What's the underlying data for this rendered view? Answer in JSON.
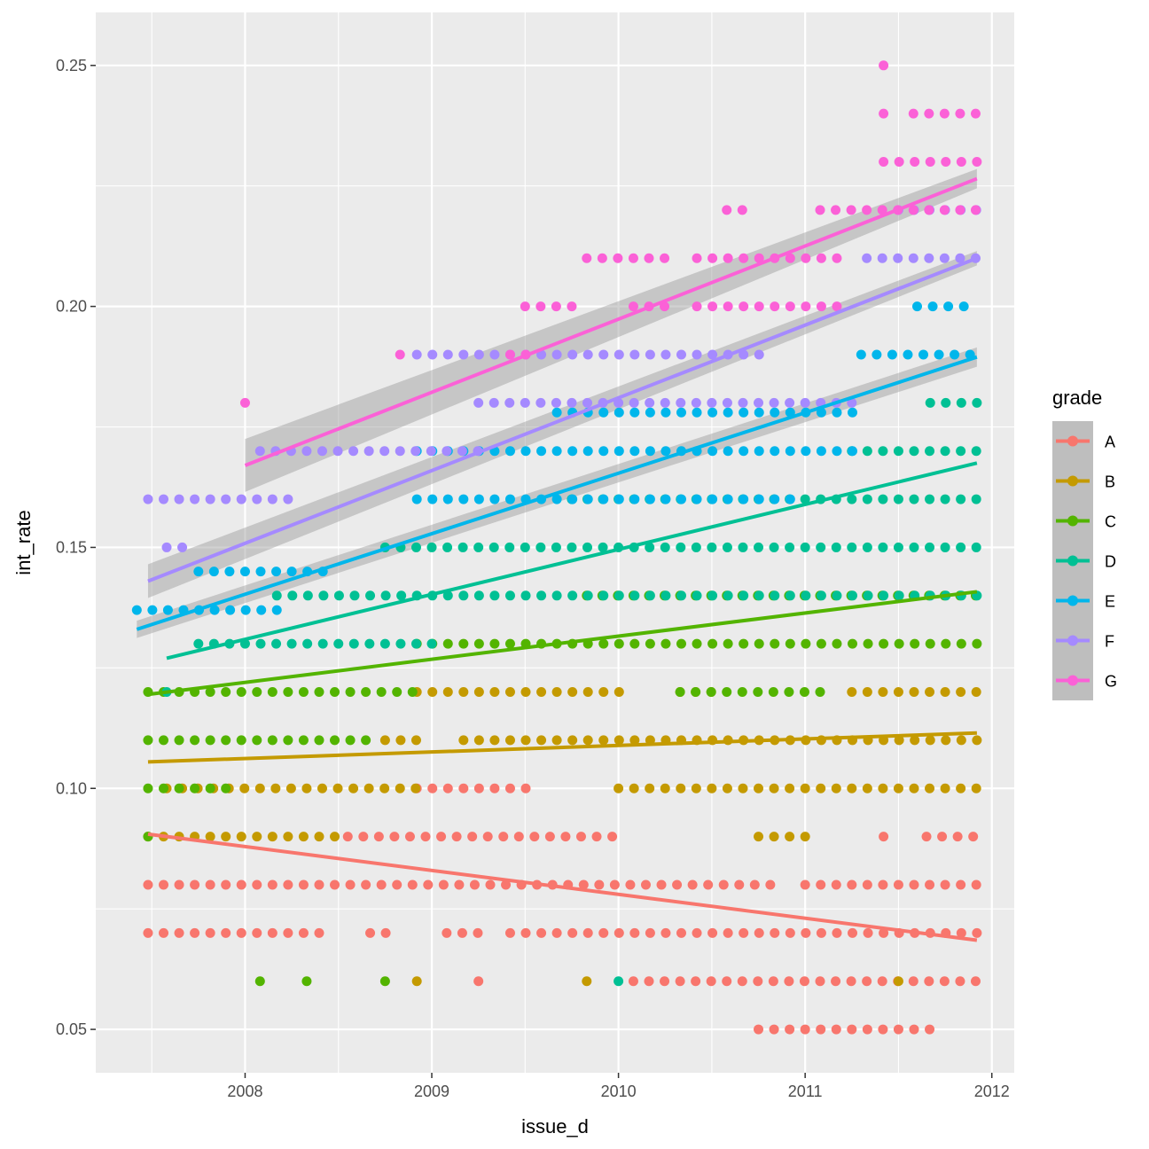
{
  "chart_data": {
    "type": "scatter",
    "title": "",
    "xlabel": "issue_d",
    "ylabel": "int_rate",
    "xlim": [
      2007.2,
      2012.12
    ],
    "ylim": [
      0.041,
      0.261
    ],
    "x_ticks": [
      2008,
      2009,
      2010,
      2011,
      2012
    ],
    "x_tick_labels": [
      "2008",
      "2009",
      "2010",
      "2011",
      "2012"
    ],
    "y_ticks": [
      0.05,
      0.1,
      0.15,
      0.2,
      0.25
    ],
    "y_tick_labels": [
      "0.05",
      "0.10",
      "0.15",
      "0.20",
      "0.25"
    ],
    "grid": true,
    "legend": {
      "title": "grade",
      "position": "right",
      "entries": [
        "A",
        "B",
        "C",
        "D",
        "E",
        "F",
        "G"
      ]
    },
    "colors": {
      "A": "#F8766D",
      "B": "#C49A00",
      "C": "#53B400",
      "D": "#00C094",
      "E": "#00B6EB",
      "F": "#A58AFF",
      "G": "#FB61D7"
    },
    "series": [
      {
        "name": "A",
        "fit": [
          [
            2007.48,
            0.0905
          ],
          [
            2011.92,
            0.0685
          ]
        ],
        "points": [
          {
            "x": [
              2007.48,
              2011.92
            ],
            "y": 0.09,
            "segments": [
              [
                2008.55,
                2010.02
              ],
              [
                2011.42,
                2011.42
              ],
              [
                2011.65,
                2011.92
              ]
            ]
          },
          {
            "x": [
              2007.48,
              2011.92
            ],
            "y": 0.08,
            "segments": [
              [
                2007.48,
                2010.82
              ],
              [
                2011.0,
                2011.92
              ]
            ]
          },
          {
            "x": [
              2007.48,
              2011.92
            ],
            "y": 0.07,
            "segments": [
              [
                2007.48,
                2008.42
              ],
              [
                2008.67,
                2008.83
              ],
              [
                2009.08,
                2009.25
              ],
              [
                2009.42,
                2011.92
              ]
            ]
          },
          {
            "x": [
              2007.48,
              2011.92
            ],
            "y": 0.1,
            "segments": [
              [
                2008.92,
                2009.58
              ]
            ]
          },
          {
            "x": [
              2007.48,
              2011.92
            ],
            "y": 0.06,
            "segments": [
              [
                2009.25,
                2009.25
              ],
              [
                2010.08,
                2011.92
              ]
            ]
          },
          {
            "x": [
              2007.48,
              2011.92
            ],
            "y": 0.05,
            "segments": [
              [
                2010.75,
                2011.67
              ]
            ]
          }
        ]
      },
      {
        "name": "B",
        "fit": [
          [
            2007.48,
            0.1055
          ],
          [
            2011.92,
            0.1115
          ]
        ],
        "points": [
          {
            "y": 0.12,
            "segments": [
              [
                2008.92,
                2010.08
              ],
              [
                2010.33,
                2010.5
              ],
              [
                2011.25,
                2011.92
              ]
            ]
          },
          {
            "y": 0.11,
            "segments": [
              [
                2008.75,
                2008.92
              ],
              [
                2009.17,
                2011.92
              ]
            ]
          },
          {
            "y": 0.1,
            "segments": [
              [
                2007.58,
                2008.92
              ],
              [
                2010.0,
                2011.92
              ]
            ]
          },
          {
            "y": 0.09,
            "segments": [
              [
                2007.48,
                2008.5
              ],
              [
                2010.75,
                2011.0
              ]
            ]
          },
          {
            "y": 0.06,
            "segments": [
              [
                2008.92,
                2008.92
              ],
              [
                2009.83,
                2009.83
              ],
              [
                2011.5,
                2011.5
              ]
            ]
          }
        ]
      },
      {
        "name": "C",
        "fit": [
          [
            2007.48,
            0.1195
          ],
          [
            2011.92,
            0.1408
          ]
        ],
        "points": [
          {
            "y": 0.14,
            "segments": [
              [
                2009.83,
                2011.92
              ]
            ]
          },
          {
            "y": 0.13,
            "segments": [
              [
                2008.92,
                2011.92
              ]
            ]
          },
          {
            "y": 0.12,
            "segments": [
              [
                2007.48,
                2008.92
              ],
              [
                2010.33,
                2011.08
              ]
            ]
          },
          {
            "y": 0.11,
            "segments": [
              [
                2007.48,
                2008.67
              ]
            ]
          },
          {
            "y": 0.1,
            "segments": [
              [
                2007.48,
                2007.92
              ]
            ]
          },
          {
            "y": 0.09,
            "segments": [
              [
                2007.48,
                2007.48
              ]
            ]
          },
          {
            "y": 0.06,
            "segments": [
              [
                2008.08,
                2008.08
              ],
              [
                2008.33,
                2008.33
              ],
              [
                2008.75,
                2008.75
              ]
            ]
          }
        ]
      },
      {
        "name": "D",
        "fit": [
          [
            2007.58,
            0.127
          ],
          [
            2011.92,
            0.1675
          ]
        ],
        "points": [
          {
            "y": 0.18,
            "segments": [
              [
                2011.67,
                2011.92
              ]
            ]
          },
          {
            "y": 0.17,
            "segments": [
              [
                2011.25,
                2011.92
              ]
            ]
          },
          {
            "y": 0.16,
            "segments": [
              [
                2009.75,
                2011.92
              ]
            ]
          },
          {
            "y": 0.15,
            "segments": [
              [
                2008.75,
                2011.92
              ]
            ]
          },
          {
            "y": 0.14,
            "segments": [
              [
                2008.17,
                2011.92
              ]
            ]
          },
          {
            "y": 0.13,
            "segments": [
              [
                2007.75,
                2009.0
              ]
            ]
          },
          {
            "y": 0.12,
            "segments": [
              [
                2007.58,
                2007.58
              ]
            ]
          },
          {
            "y": 0.06,
            "segments": [
              [
                2010.0,
                2010.0
              ]
            ]
          }
        ]
      },
      {
        "name": "E",
        "fit": [
          [
            2007.42,
            0.133
          ],
          [
            2011.92,
            0.1895
          ]
        ],
        "band": [
          [
            2007.42,
            0.1312,
            0.1348
          ],
          [
            2011.92,
            0.1875,
            0.1915
          ]
        ],
        "points": [
          {
            "y": 0.16,
            "segments": [
              [
                2008.92,
                2011.0
              ]
            ]
          },
          {
            "y": 0.17,
            "segments": [
              [
                2008.92,
                2011.3
              ]
            ]
          },
          {
            "y": 0.178,
            "segments": [
              [
                2009.67,
                2011.3
              ]
            ]
          },
          {
            "y": 0.19,
            "segments": [
              [
                2011.3,
                2011.92
              ]
            ]
          },
          {
            "y": 0.2,
            "segments": [
              [
                2011.6,
                2011.92
              ]
            ]
          },
          {
            "y": 0.145,
            "segments": [
              [
                2007.75,
                2008.42
              ]
            ]
          },
          {
            "y": 0.137,
            "segments": [
              [
                2007.42,
                2008.17
              ]
            ]
          }
        ]
      },
      {
        "name": "F",
        "fit": [
          [
            2007.48,
            0.143
          ],
          [
            2011.92,
            0.21
          ]
        ],
        "band": [
          [
            2007.48,
            0.1395,
            0.1465
          ],
          [
            2011.92,
            0.2085,
            0.2115
          ]
        ],
        "points": [
          {
            "y": 0.22,
            "segments": [
              [
                2011.5,
                2011.92
              ]
            ]
          },
          {
            "y": 0.21,
            "segments": [
              [
                2011.33,
                2011.92
              ]
            ]
          },
          {
            "y": 0.19,
            "segments": [
              [
                2008.92,
                2010.83
              ]
            ]
          },
          {
            "y": 0.18,
            "segments": [
              [
                2009.25,
                2011.3
              ]
            ]
          },
          {
            "y": 0.17,
            "segments": [
              [
                2008.08,
                2009.3
              ]
            ]
          },
          {
            "y": 0.16,
            "segments": [
              [
                2007.48,
                2008.25
              ]
            ]
          },
          {
            "y": 0.15,
            "segments": [
              [
                2007.58,
                2007.67
              ]
            ]
          }
        ]
      },
      {
        "name": "G",
        "fit": [
          [
            2008.0,
            0.167
          ],
          [
            2011.92,
            0.2265
          ]
        ],
        "band": [
          [
            2008.0,
            0.1615,
            0.1725
          ],
          [
            2011.92,
            0.2245,
            0.2285
          ]
        ],
        "points": [
          {
            "y": 0.25,
            "segments": [
              [
                2011.42,
                2011.42
              ]
            ]
          },
          {
            "y": 0.24,
            "segments": [
              [
                2011.42,
                2011.42
              ],
              [
                2011.58,
                2011.92
              ]
            ]
          },
          {
            "y": 0.23,
            "segments": [
              [
                2011.42,
                2011.92
              ]
            ]
          },
          {
            "y": 0.22,
            "segments": [
              [
                2010.58,
                2010.67
              ],
              [
                2011.08,
                2011.92
              ]
            ]
          },
          {
            "y": 0.21,
            "segments": [
              [
                2009.83,
                2010.25
              ],
              [
                2010.42,
                2011.25
              ]
            ]
          },
          {
            "y": 0.2,
            "segments": [
              [
                2009.5,
                2009.83
              ],
              [
                2010.08,
                2010.25
              ],
              [
                2010.42,
                2011.25
              ]
            ]
          },
          {
            "y": 0.19,
            "segments": [
              [
                2008.83,
                2008.83
              ],
              [
                2009.42,
                2009.58
              ]
            ]
          },
          {
            "y": 0.18,
            "segments": [
              [
                2008.0,
                2008.0
              ]
            ]
          }
        ]
      }
    ]
  }
}
